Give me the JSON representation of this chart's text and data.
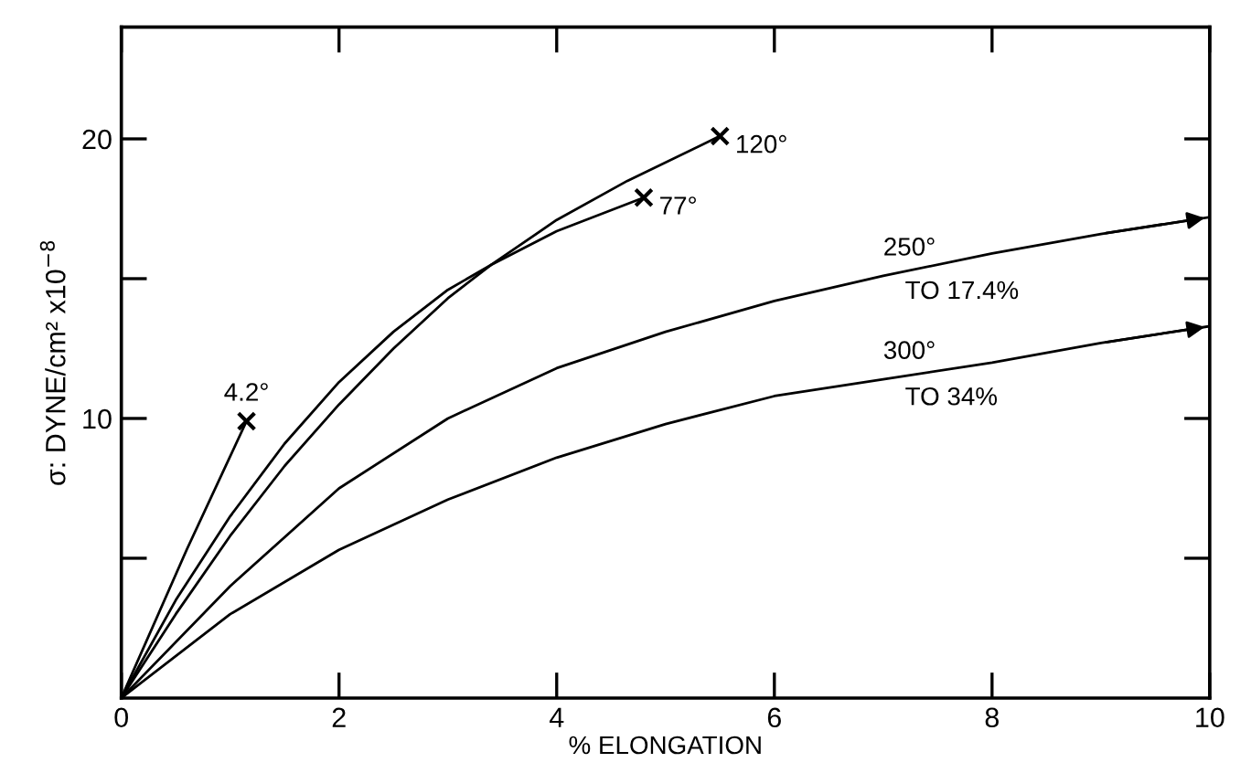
{
  "chart_data": {
    "type": "line",
    "xlabel": "% ELONGATION",
    "ylabel": "σ: DYNE/cm² x10$^{−8}$",
    "xlim": [
      0,
      10
    ],
    "ylim": [
      0,
      24
    ],
    "xticks": [
      0,
      2,
      4,
      6,
      8,
      10
    ],
    "yticks": [
      {
        "value": 5,
        "label": null
      },
      10,
      {
        "value": 15,
        "label": null
      },
      20
    ],
    "grid": false,
    "legend": false,
    "line_style": "solid",
    "series": [
      {
        "name": "4.2°",
        "color": "#000000",
        "x": [
          0,
          0.6,
          1.15
        ],
        "values": [
          0,
          5.3,
          9.9
        ]
      },
      {
        "name": "77°",
        "color": "#000000",
        "x": [
          0,
          0.5,
          1,
          1.5,
          2,
          2.5,
          3,
          3.4,
          4,
          4.8
        ],
        "values": [
          0,
          3.5,
          6.5,
          9.1,
          11.3,
          13.1,
          14.6,
          15.5,
          16.7,
          17.9
        ]
      },
      {
        "name": "120°",
        "color": "#000000",
        "x": [
          0,
          0.5,
          1,
          1.5,
          2,
          2.5,
          3,
          3.4,
          4,
          4.65,
          5.5
        ],
        "values": [
          0,
          3,
          5.8,
          8.3,
          10.5,
          12.5,
          14.3,
          15.5,
          17.1,
          18.5,
          20.1
        ]
      },
      {
        "name": "250°",
        "color": "#000000",
        "x": [
          0,
          1,
          2,
          3,
          4,
          5,
          6,
          7,
          8,
          9,
          10
        ],
        "values": [
          0,
          4,
          7.5,
          10,
          11.8,
          13.1,
          14.2,
          15.1,
          15.9,
          16.6,
          17.2
        ]
      },
      {
        "name": "300°",
        "color": "#000000",
        "x": [
          0,
          1,
          2,
          3,
          4,
          5,
          6,
          7,
          8,
          9,
          10
        ],
        "values": [
          0,
          3,
          5.3,
          7.1,
          8.6,
          9.8,
          10.8,
          11.4,
          12,
          12.7,
          13.3
        ]
      },
      {
        "type": "scatter",
        "marker": "cross",
        "color": "#000000",
        "x": [
          1.15,
          4.8,
          5.5
        ],
        "values": [
          9.9,
          17.9,
          20.1
        ]
      }
    ],
    "annotations": [
      {
        "text": "TO 17.4%",
        "x": 7.2,
        "y": 15.3
      },
      {
        "text": "TO 34%",
        "x": 7.2,
        "y": 11.5
      }
    ]
  }
}
